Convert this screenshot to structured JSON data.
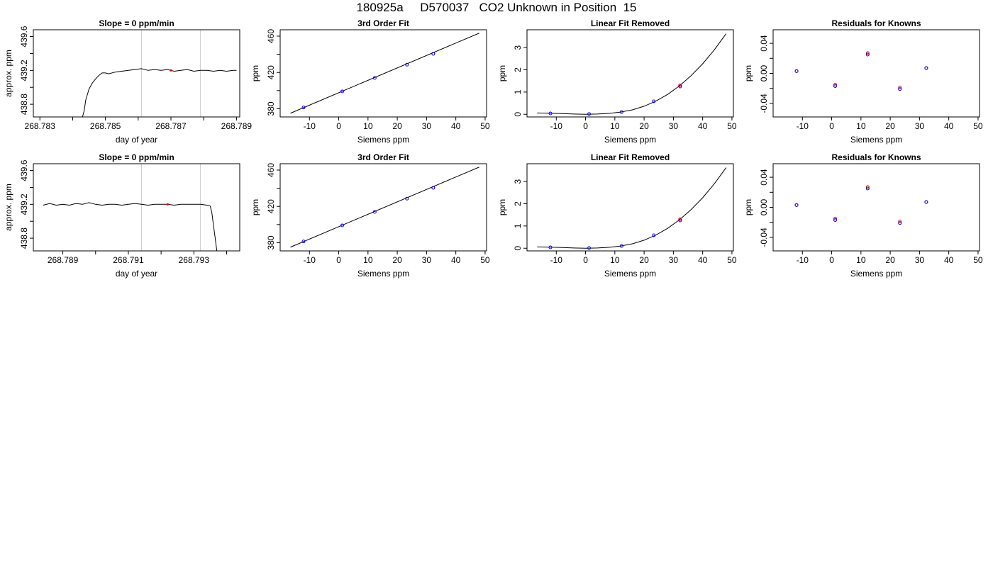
{
  "title": "180925a     D570037   CO2 Unknown in Position  15",
  "chart_data": [
    {
      "type": "line",
      "title": "Slope =  0  ppm/min",
      "xlabel": "day of year",
      "ylabel": "approx. ppm",
      "xlim": [
        268.7828,
        268.7891
      ],
      "ylim": [
        438.65,
        439.68
      ],
      "xticks": [
        268.783,
        268.784,
        268.785,
        268.786,
        268.787,
        268.788,
        268.789
      ],
      "xtick_labels": [
        "268.783",
        "",
        "268.785",
        "",
        "268.787",
        "",
        "268.789"
      ],
      "yticks": [
        438.8,
        439.2,
        439.6
      ],
      "ytick_labels": [
        "438.8",
        "439.2",
        "439.6"
      ],
      "extra_yticks": [
        439.0,
        439.4
      ],
      "vlines": [
        268.7861,
        268.7879
      ],
      "vline_color": "#cccccc",
      "marker": {
        "x": 268.787,
        "y": 439.2,
        "color": "#ff0000"
      },
      "trace": {
        "x": [
          268.7843,
          268.78435,
          268.7844,
          268.7845,
          268.7846,
          268.7847,
          268.7848,
          268.7849,
          268.785,
          268.7851,
          268.7853,
          268.7855,
          268.7857,
          268.7859,
          268.7861,
          268.7863,
          268.7865,
          268.7867,
          268.7869,
          268.7871,
          268.7873,
          268.7875,
          268.7877,
          268.7879,
          268.7881,
          268.7883,
          268.7885,
          268.7887,
          268.7889,
          268.789
        ],
        "y": [
          438.65,
          438.72,
          438.85,
          438.98,
          439.05,
          439.1,
          439.14,
          439.17,
          439.17,
          439.16,
          439.18,
          439.19,
          439.2,
          439.21,
          439.22,
          439.2,
          439.21,
          439.2,
          439.21,
          439.19,
          439.2,
          439.21,
          439.19,
          439.2,
          439.2,
          439.19,
          439.2,
          439.19,
          439.2,
          439.2
        ]
      }
    },
    {
      "type": "scatter",
      "title": "3rd Order Fit",
      "xlabel": "Siemens ppm",
      "ylabel": "ppm",
      "xlim": [
        -20,
        50.5
      ],
      "ylim": [
        371,
        467
      ],
      "xticks": [
        -10,
        0,
        10,
        20,
        30,
        40,
        50
      ],
      "yticks": [
        380,
        400,
        420,
        440,
        460
      ],
      "ytick_labels": [
        "380",
        "",
        "420",
        "",
        "460"
      ],
      "points": [
        {
          "x": -12,
          "y": 381.4,
          "color": "#0000ff"
        },
        {
          "x": 1.2,
          "y": 399.1,
          "color": "#0000ff"
        },
        {
          "x": 12.3,
          "y": 413.9,
          "color": "#0000ff"
        },
        {
          "x": 23.3,
          "y": 428.6,
          "color": "#0000ff"
        },
        {
          "x": 32.3,
          "y": 440.5,
          "color": "#ff0000"
        },
        {
          "x": 32.3,
          "y": 440.6,
          "color": "#0000ff"
        }
      ],
      "fit_line": {
        "x": [
          -16.5,
          48
        ],
        "y": [
          375.1,
          463.3
        ]
      }
    },
    {
      "type": "scatter",
      "title": "Linear Fit Removed",
      "xlabel": "Siemens ppm",
      "ylabel": "ppm",
      "xlim": [
        -20,
        50.5
      ],
      "ylim": [
        -0.12,
        3.8
      ],
      "xticks": [
        -10,
        0,
        10,
        20,
        30,
        40,
        50
      ],
      "yticks": [
        0,
        1,
        2,
        3
      ],
      "points": [
        {
          "x": -12,
          "y": 0.04,
          "color": "#0000ff"
        },
        {
          "x": 1.2,
          "y": 0.01,
          "color": "#0000ff"
        },
        {
          "x": 12.3,
          "y": 0.1,
          "color": "#0000ff"
        },
        {
          "x": 23.3,
          "y": 0.58,
          "color": "#0000ff"
        },
        {
          "x": 32.3,
          "y": 1.3,
          "color": "#ff0000"
        },
        {
          "x": 32.3,
          "y": 1.25,
          "color": "#0000ff"
        }
      ],
      "fit_curve": {
        "x": [
          -16.5,
          -12,
          -8,
          -4,
          0,
          4,
          8,
          12,
          16,
          20,
          24,
          28,
          32,
          36,
          40,
          44,
          48
        ],
        "y": [
          0.06,
          0.05,
          0.03,
          0.01,
          0.0,
          0.01,
          0.04,
          0.1,
          0.2,
          0.36,
          0.59,
          0.89,
          1.27,
          1.73,
          2.27,
          2.9,
          3.62
        ]
      }
    },
    {
      "type": "scatter",
      "title": "Residuals for Knowns",
      "xlabel": "Siemens ppm",
      "ylabel": "ppm",
      "xlim": [
        -20,
        50.5
      ],
      "ylim": [
        -0.058,
        0.058
      ],
      "xticks": [
        -10,
        0,
        10,
        20,
        30,
        40,
        50
      ],
      "yticks": [
        -0.04,
        -0.02,
        0.0,
        0.02,
        0.04
      ],
      "ytick_labels": [
        "-0.04",
        "",
        "0.00",
        "",
        "0.04"
      ],
      "points": [
        {
          "x": -12,
          "y": 0.003,
          "color": "#ff0000"
        },
        {
          "x": -12,
          "y": 0.003,
          "color": "#0000ff"
        },
        {
          "x": 1.2,
          "y": -0.015,
          "color": "#ff0000"
        },
        {
          "x": 1.2,
          "y": -0.017,
          "color": "#0000ff"
        },
        {
          "x": 12.3,
          "y": 0.027,
          "color": "#ff0000"
        },
        {
          "x": 12.3,
          "y": 0.025,
          "color": "#0000ff"
        },
        {
          "x": 23.3,
          "y": -0.019,
          "color": "#ff0000"
        },
        {
          "x": 23.3,
          "y": -0.021,
          "color": "#0000ff"
        },
        {
          "x": 32.3,
          "y": 0.007,
          "color": "#ff0000"
        },
        {
          "x": 32.3,
          "y": 0.007,
          "color": "#0000ff"
        }
      ]
    },
    {
      "type": "line",
      "title": "Slope =  0  ppm/min",
      "xlabel": "day of year",
      "ylabel": "approx. ppm",
      "xlim": [
        268.7881,
        268.7944
      ],
      "ylim": [
        438.65,
        439.68
      ],
      "xticks": [
        268.789,
        268.79,
        268.791,
        268.792,
        268.793,
        268.794
      ],
      "xtick_labels": [
        "268.789",
        "",
        "268.791",
        "",
        "268.793",
        ""
      ],
      "yticks": [
        438.8,
        439.2,
        439.6
      ],
      "ytick_labels": [
        "438.8",
        "439.2",
        "439.6"
      ],
      "extra_yticks": [
        439.0,
        439.4
      ],
      "vlines": [
        268.7914,
        268.7932
      ],
      "vline_color": "#cccccc",
      "marker": {
        "x": 268.7922,
        "y": 439.2,
        "color": "#ff0000"
      },
      "trace": {
        "x": [
          268.7884,
          268.7886,
          268.7888,
          268.789,
          268.7892,
          268.7894,
          268.7896,
          268.7898,
          268.79,
          268.7902,
          268.7904,
          268.7906,
          268.7908,
          268.791,
          268.7912,
          268.7914,
          268.7916,
          268.7918,
          268.792,
          268.7922,
          268.7924,
          268.7926,
          268.7928,
          268.793,
          268.7932,
          268.7934,
          268.7935,
          268.79355,
          268.7936,
          268.79365,
          268.7937
        ],
        "y": [
          439.19,
          439.21,
          439.19,
          439.2,
          439.19,
          439.21,
          439.2,
          439.22,
          439.2,
          439.19,
          439.2,
          439.2,
          439.19,
          439.2,
          439.21,
          439.2,
          439.19,
          439.2,
          439.2,
          439.2,
          439.19,
          439.2,
          439.2,
          439.2,
          439.2,
          439.19,
          439.18,
          439.1,
          438.95,
          438.8,
          438.65
        ]
      }
    },
    {
      "type": "scatter",
      "title": "3rd Order Fit",
      "xlabel": "Siemens ppm",
      "ylabel": "ppm",
      "xlim": [
        -20,
        50.5
      ],
      "ylim": [
        371,
        467
      ],
      "xticks": [
        -10,
        0,
        10,
        20,
        30,
        40,
        50
      ],
      "yticks": [
        380,
        400,
        420,
        440,
        460
      ],
      "ytick_labels": [
        "380",
        "",
        "420",
        "",
        "460"
      ],
      "points": [
        {
          "x": -12,
          "y": 381.4,
          "color": "#0000ff"
        },
        {
          "x": 1.2,
          "y": 399.1,
          "color": "#0000ff"
        },
        {
          "x": 12.3,
          "y": 413.9,
          "color": "#0000ff"
        },
        {
          "x": 23.3,
          "y": 428.6,
          "color": "#0000ff"
        },
        {
          "x": 32.3,
          "y": 440.5,
          "color": "#ff0000"
        },
        {
          "x": 32.3,
          "y": 440.6,
          "color": "#0000ff"
        }
      ],
      "fit_line": {
        "x": [
          -16.5,
          48
        ],
        "y": [
          375.1,
          463.3
        ]
      }
    },
    {
      "type": "scatter",
      "title": "Linear Fit Removed",
      "xlabel": "Siemens ppm",
      "ylabel": "ppm",
      "xlim": [
        -20,
        50.5
      ],
      "ylim": [
        -0.12,
        3.8
      ],
      "xticks": [
        -10,
        0,
        10,
        20,
        30,
        40,
        50
      ],
      "yticks": [
        0,
        1,
        2,
        3
      ],
      "points": [
        {
          "x": -12,
          "y": 0.04,
          "color": "#0000ff"
        },
        {
          "x": 1.2,
          "y": 0.01,
          "color": "#0000ff"
        },
        {
          "x": 12.3,
          "y": 0.1,
          "color": "#0000ff"
        },
        {
          "x": 23.3,
          "y": 0.58,
          "color": "#0000ff"
        },
        {
          "x": 32.3,
          "y": 1.3,
          "color": "#ff0000"
        },
        {
          "x": 32.3,
          "y": 1.25,
          "color": "#0000ff"
        }
      ],
      "fit_curve": {
        "x": [
          -16.5,
          -12,
          -8,
          -4,
          0,
          4,
          8,
          12,
          16,
          20,
          24,
          28,
          32,
          36,
          40,
          44,
          48
        ],
        "y": [
          0.06,
          0.05,
          0.03,
          0.01,
          0.0,
          0.01,
          0.04,
          0.1,
          0.2,
          0.36,
          0.59,
          0.89,
          1.27,
          1.73,
          2.27,
          2.9,
          3.62
        ]
      }
    },
    {
      "type": "scatter",
      "title": "Residuals for Knowns",
      "xlabel": "Siemens ppm",
      "ylabel": "ppm",
      "xlim": [
        -20,
        50.5
      ],
      "ylim": [
        -0.058,
        0.058
      ],
      "xticks": [
        -10,
        0,
        10,
        20,
        30,
        40,
        50
      ],
      "yticks": [
        -0.04,
        -0.02,
        0.0,
        0.02,
        0.04
      ],
      "ytick_labels": [
        "-0.04",
        "",
        "0.00",
        "",
        "0.04"
      ],
      "points": [
        {
          "x": -12,
          "y": 0.003,
          "color": "#ff0000"
        },
        {
          "x": -12,
          "y": 0.003,
          "color": "#0000ff"
        },
        {
          "x": 1.2,
          "y": -0.015,
          "color": "#ff0000"
        },
        {
          "x": 1.2,
          "y": -0.017,
          "color": "#0000ff"
        },
        {
          "x": 12.3,
          "y": 0.027,
          "color": "#ff0000"
        },
        {
          "x": 12.3,
          "y": 0.025,
          "color": "#0000ff"
        },
        {
          "x": 23.3,
          "y": -0.019,
          "color": "#ff0000"
        },
        {
          "x": 23.3,
          "y": -0.021,
          "color": "#0000ff"
        },
        {
          "x": 32.3,
          "y": 0.007,
          "color": "#ff0000"
        },
        {
          "x": 32.3,
          "y": 0.007,
          "color": "#0000ff"
        }
      ]
    }
  ]
}
